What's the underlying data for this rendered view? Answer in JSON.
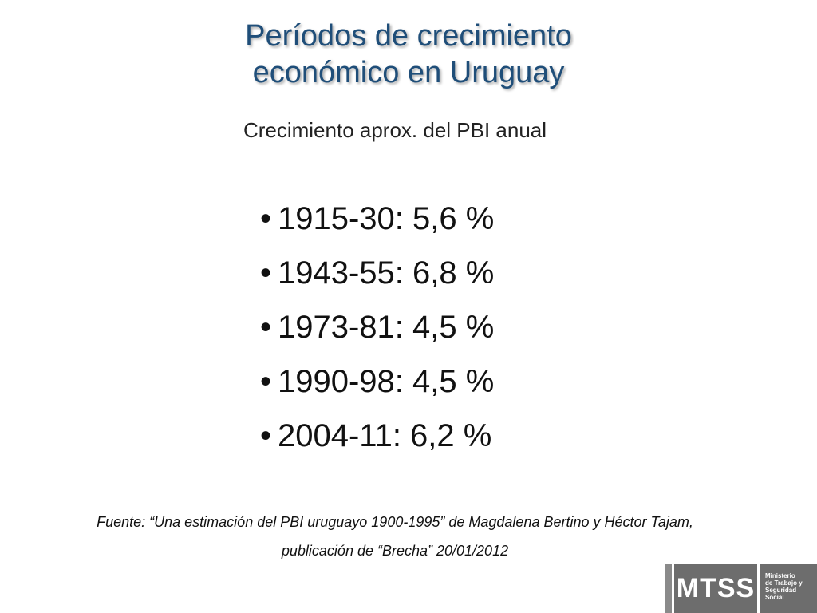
{
  "slide": {
    "title_lines": [
      "Períodos de crecimiento",
      "económico en Uruguay"
    ],
    "subtitle": "Crecimiento aprox. del PBI anual",
    "bullets": [
      "1915-30: 5,6 %",
      "1943-55: 6,8 %",
      "1973-81: 4,5 %",
      "1990-98: 4,5 %",
      "2004-11: 6,2 %"
    ],
    "bullet_glyph": "•",
    "source_lines": [
      "Fuente: “Una estimación del PBI uruguayo 1900-1995” de Magdalena Bertino y Héctor Tajam,",
      "publicación de “Brecha” 20/01/2012"
    ]
  },
  "logo": {
    "acronym": "MTSS",
    "name_lines": [
      "Ministerio",
      "de Trabajo y",
      "Seguridad",
      "Social"
    ]
  },
  "colors": {
    "title": "#1f4e79",
    "logo_bg": "#6d6d6d"
  }
}
